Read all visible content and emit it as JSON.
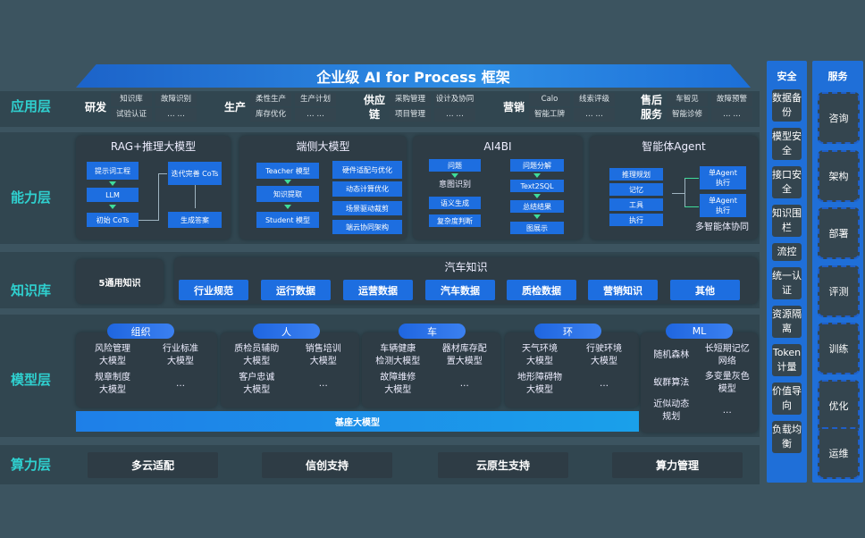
{
  "title": "企业级 AI for Process 框架",
  "layers": {
    "app": "应用层",
    "capability": "能力层",
    "knowledge": "知识库",
    "model": "模型层",
    "compute": "算力层"
  },
  "app_groups": [
    {
      "label": "研发",
      "items": [
        "知识库",
        "故障识别",
        "试验认证",
        "… …"
      ]
    },
    {
      "label": "生产",
      "items": [
        "柔性生产",
        "生产计划",
        "库存优化",
        "… …"
      ]
    },
    {
      "label": "供应链",
      "items": [
        "采购管理",
        "设计及协同",
        "项目管理",
        "… …"
      ]
    },
    {
      "label": "营销",
      "items": [
        "Calo",
        "线索评级",
        "智能工牌",
        "… …"
      ]
    },
    {
      "label": "售后服务",
      "items": [
        "车智见",
        "故障预警",
        "智能诊修",
        "… …"
      ]
    }
  ],
  "capability": {
    "rag": {
      "title": "RAG+推理大模型",
      "n1": "提示词工程",
      "n2": "LLM",
      "n3": "初始 CoTs",
      "n4": "迭代完善 CoTs",
      "n5": "生成答案"
    },
    "edge": {
      "title": "端侧大模型",
      "n1": "Teacher 模型",
      "n2": "知识提取",
      "n3": "Student 模型",
      "r1": "硬件适配与优化",
      "r2": "动态计算优化",
      "r3": "场景驱动裁剪",
      "r4": "端云协同架构"
    },
    "ai4bi": {
      "title": "AI4BI",
      "l1": "问题",
      "l2": "意图识别",
      "l3": "语义生成",
      "l4": "复杂度判断",
      "r1": "问题分解",
      "r2": "Text2SQL",
      "r3": "总结结果",
      "r4": "图展示"
    },
    "agent": {
      "title": "智能体Agent",
      "l1": "推理规划",
      "l2": "记忆",
      "l3": "工具",
      "l4": "执行",
      "a1": "单Agent\n执行",
      "a2": "单Agent\n执行",
      "footer": "多智能体协同"
    }
  },
  "knowledge": {
    "general": "5通用知识",
    "auto_title": "汽车知识",
    "items": [
      "行业规范",
      "运行数据",
      "运营数据",
      "汽车数据",
      "质检数据",
      "营销知识",
      "其他"
    ]
  },
  "models": [
    {
      "label": "组织",
      "items": [
        "风险管理\n大模型",
        "行业标准\n大模型",
        "规章制度\n大模型",
        "…"
      ]
    },
    {
      "label": "人",
      "items": [
        "质检员辅助\n大模型",
        "销售培训\n大模型",
        "客户忠诚\n大模型",
        "…"
      ]
    },
    {
      "label": "车",
      "items": [
        "车辆健康\n检测大模型",
        "器材库存配\n置大模型",
        "故障维修\n大模型",
        "…"
      ]
    },
    {
      "label": "环",
      "items": [
        "天气环境\n大模型",
        "行驶环境\n大模型",
        "地形障碍物\n大模型",
        "…"
      ]
    },
    {
      "label": "ML",
      "items": [
        "随机森林",
        "长短期记忆\n网络",
        "蚁群算法",
        "多变量灰色\n模型",
        "近似动态\n规划",
        "…"
      ]
    }
  ],
  "base_model": "基座大模型",
  "compute": [
    "多云适配",
    "信创支持",
    "云原生支持",
    "算力管理"
  ],
  "security": {
    "title": "安全",
    "items": [
      "数据备份",
      "模型安全",
      "接口安全",
      "知识围栏",
      "流控",
      "统一认证",
      "资源隔离",
      "Token计量",
      "价值导向",
      "负载均衡"
    ]
  },
  "service": {
    "title": "服务",
    "items": [
      "咨询",
      "架构",
      "部署",
      "评测",
      "训练",
      "优化",
      "运维"
    ]
  },
  "colors": {
    "background": "#3c5460",
    "accent_blue": "#1d6ee0",
    "layer_label": "#2fd0cf",
    "panel": "#2e3c45"
  }
}
